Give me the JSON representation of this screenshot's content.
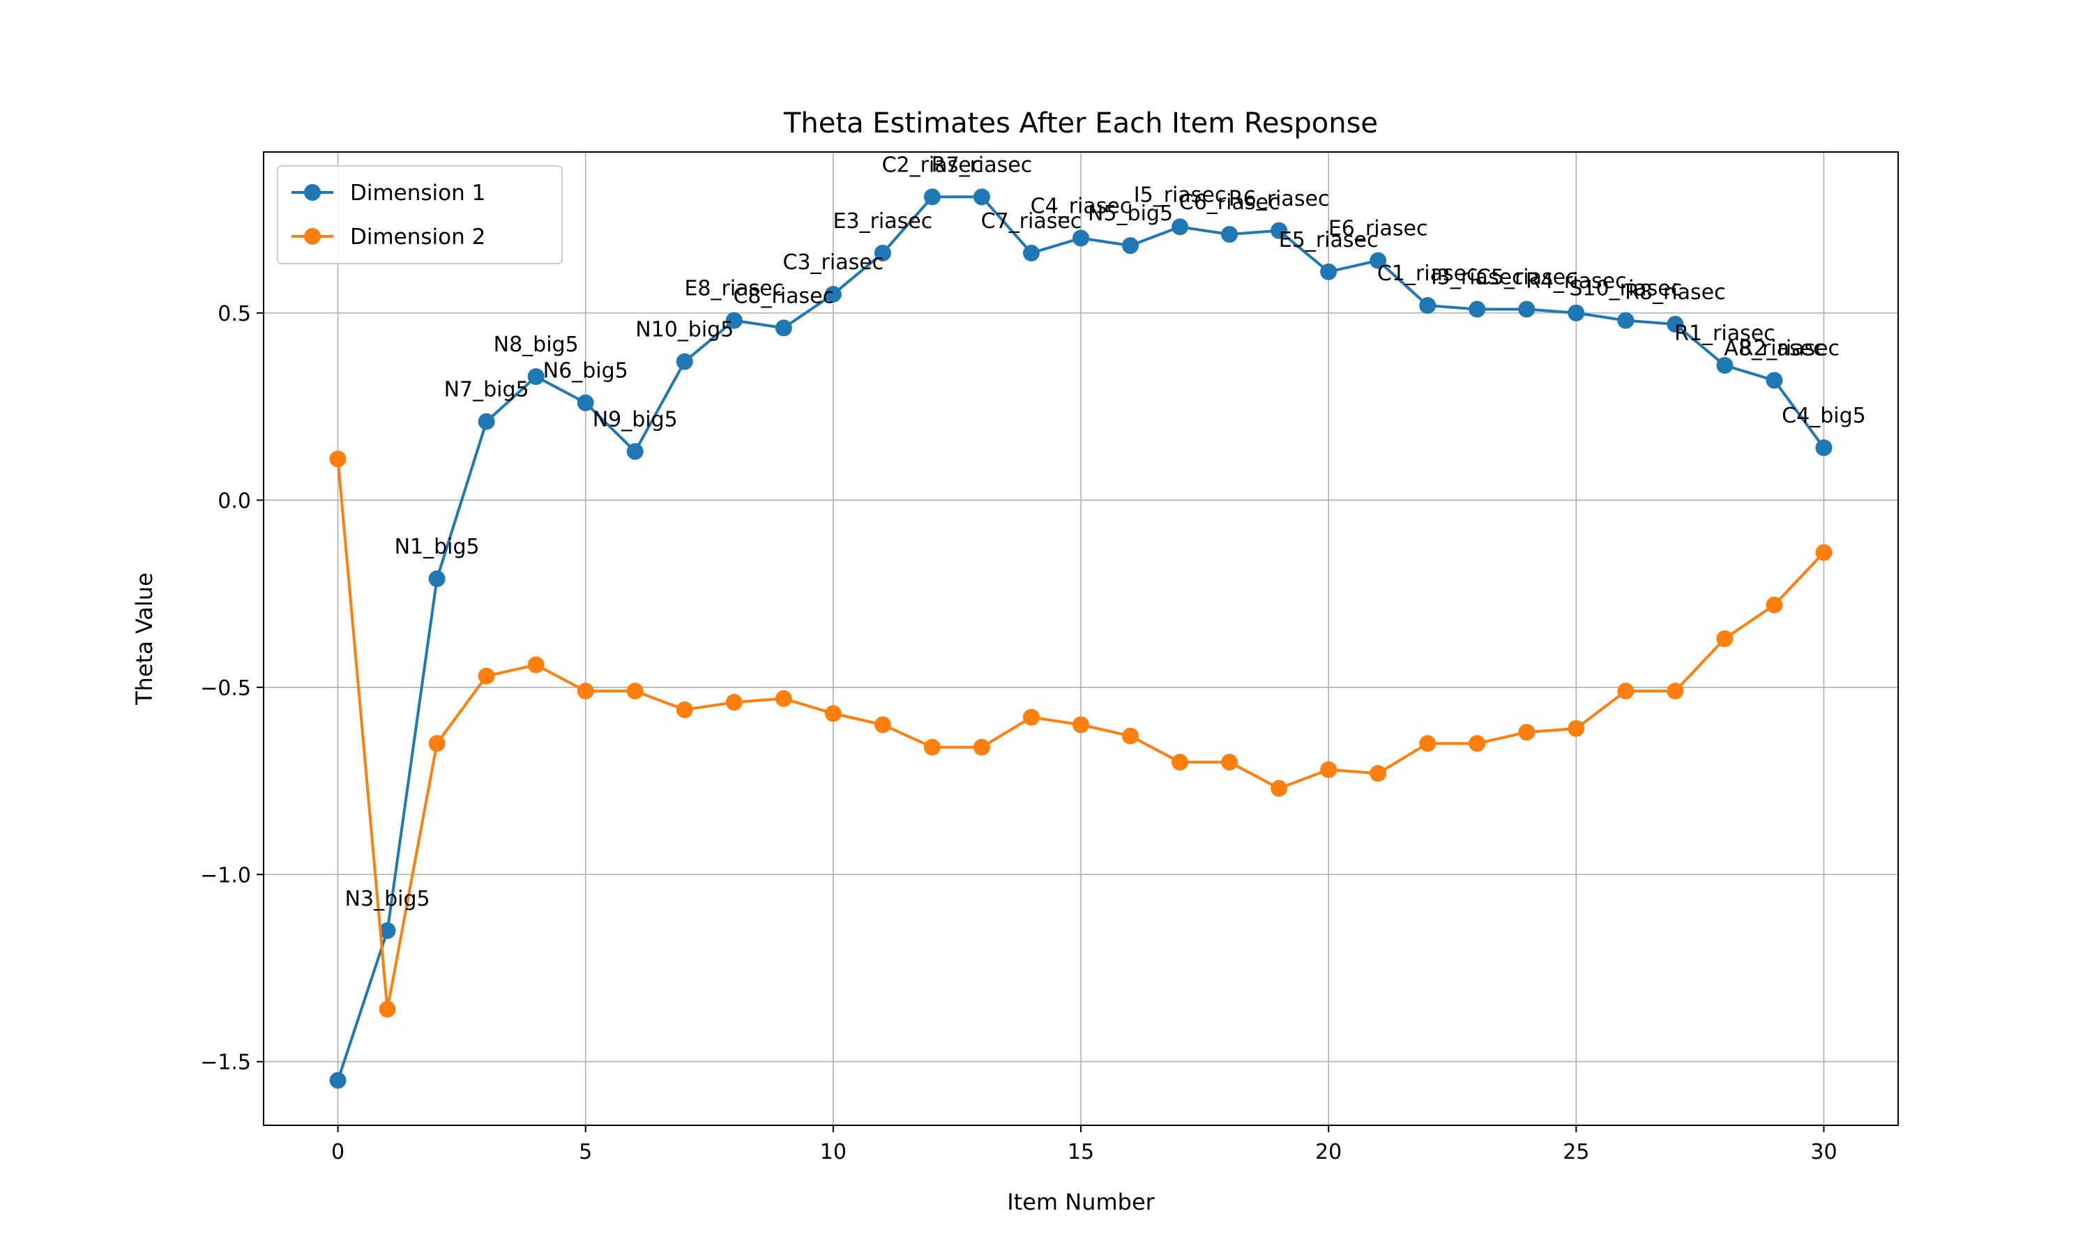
{
  "chart_data": {
    "type": "line",
    "title": "Theta Estimates After Each Item Response",
    "xlabel": "Item Number",
    "ylabel": "Theta Value",
    "xlim": [
      -1.5,
      31.5
    ],
    "ylim": [
      -1.67,
      0.93
    ],
    "xticks": [
      0,
      5,
      10,
      15,
      20,
      25,
      30
    ],
    "xtick_labels": [
      "0",
      "5",
      "10",
      "15",
      "20",
      "25",
      "30"
    ],
    "yticks": [
      -1.5,
      -1.0,
      -0.5,
      0.0,
      0.5
    ],
    "ytick_labels": [
      "−1.5",
      "−1.0",
      "−0.5",
      "0.0",
      "0.5"
    ],
    "grid": true,
    "legend_position": "top-left",
    "x": [
      0,
      1,
      2,
      3,
      4,
      5,
      6,
      7,
      8,
      9,
      10,
      11,
      12,
      13,
      14,
      15,
      16,
      17,
      18,
      19,
      20,
      21,
      22,
      23,
      24,
      25,
      26,
      27,
      28,
      29,
      30
    ],
    "series": [
      {
        "name": "Dimension 1",
        "color": "#1f77b4",
        "values": [
          -1.55,
          -1.15,
          -0.21,
          0.21,
          0.33,
          0.26,
          0.13,
          0.37,
          0.48,
          0.46,
          0.55,
          0.66,
          0.81,
          0.81,
          0.66,
          0.7,
          0.68,
          0.73,
          0.71,
          0.72,
          0.61,
          0.64,
          0.52,
          0.51,
          0.51,
          0.5,
          0.48,
          0.47,
          0.36,
          0.32,
          0.14
        ]
      },
      {
        "name": "Dimension 2",
        "color": "#ff7f0e",
        "values": [
          0.11,
          -1.36,
          -0.65,
          -0.47,
          -0.44,
          -0.51,
          -0.51,
          -0.56,
          -0.54,
          -0.53,
          -0.57,
          -0.6,
          -0.66,
          -0.66,
          -0.58,
          -0.6,
          -0.63,
          -0.7,
          -0.7,
          -0.77,
          -0.72,
          -0.73,
          -0.65,
          -0.65,
          -0.62,
          -0.61,
          -0.51,
          -0.51,
          -0.37,
          -0.28,
          -0.14
        ]
      }
    ],
    "point_labels": [
      {
        "x": 1,
        "y": -1.15,
        "text": "N3_big5"
      },
      {
        "x": 2,
        "y": -0.21,
        "text": "N1_big5"
      },
      {
        "x": 3,
        "y": 0.21,
        "text": "N7_big5"
      },
      {
        "x": 4,
        "y": 0.33,
        "text": "N8_big5"
      },
      {
        "x": 5,
        "y": 0.26,
        "text": "N6_big5"
      },
      {
        "x": 6,
        "y": 0.13,
        "text": "N9_big5"
      },
      {
        "x": 7,
        "y": 0.37,
        "text": "N10_big5"
      },
      {
        "x": 8,
        "y": 0.48,
        "text": "E8_riasec"
      },
      {
        "x": 9,
        "y": 0.46,
        "text": "C8_riasec"
      },
      {
        "x": 10,
        "y": 0.55,
        "text": "C3_riasec"
      },
      {
        "x": 11,
        "y": 0.66,
        "text": "E3_riasec"
      },
      {
        "x": 12,
        "y": 0.81,
        "text": "C2_riasec"
      },
      {
        "x": 13,
        "y": 0.81,
        "text": "R7_riasec"
      },
      {
        "x": 14,
        "y": 0.66,
        "text": "C7_riasec"
      },
      {
        "x": 15,
        "y": 0.7,
        "text": "C4_riasec"
      },
      {
        "x": 16,
        "y": 0.68,
        "text": "N5_big5"
      },
      {
        "x": 17,
        "y": 0.73,
        "text": "I5_riasec"
      },
      {
        "x": 18,
        "y": 0.71,
        "text": "C6_riasec"
      },
      {
        "x": 19,
        "y": 0.72,
        "text": "R6_riasec"
      },
      {
        "x": 20,
        "y": 0.61,
        "text": "E5_riasec"
      },
      {
        "x": 21,
        "y": 0.64,
        "text": "E6_riasec"
      },
      {
        "x": 22,
        "y": 0.52,
        "text": "C1_riasec"
      },
      {
        "x": 23,
        "y": 0.51,
        "text": "I3_riasec"
      },
      {
        "x": 24,
        "y": 0.51,
        "text": "C5_riasec"
      },
      {
        "x": 25,
        "y": 0.5,
        "text": "R4_riasec"
      },
      {
        "x": 26,
        "y": 0.48,
        "text": "S10_riasec"
      },
      {
        "x": 27,
        "y": 0.47,
        "text": "R8_riasec"
      },
      {
        "x": 28,
        "y": 0.36,
        "text": "R1_riasec"
      },
      {
        "x": 29,
        "y": 0.32,
        "text": "A8_riasec"
      },
      {
        "x": 29.3,
        "y": 0.32,
        "text": "R2_riasec"
      },
      {
        "x": 30,
        "y": 0.14,
        "text": "C4_big5"
      }
    ]
  }
}
